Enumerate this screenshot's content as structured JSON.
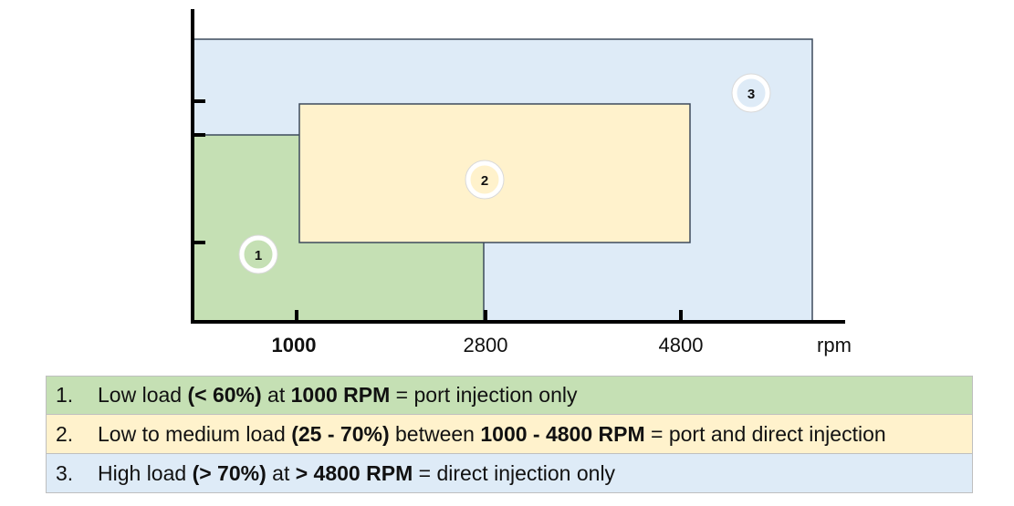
{
  "diagram": {
    "x_axis": {
      "unit_label": "rpm",
      "ticks": [
        {
          "label": "1000",
          "bold": true
        },
        {
          "label": "2800",
          "bold": false
        },
        {
          "label": "4800",
          "bold": false
        }
      ]
    },
    "zones": [
      {
        "id": "1",
        "color": "#c5e0b4"
      },
      {
        "id": "2",
        "color": "#fff2cc"
      },
      {
        "id": "3",
        "color": "#deebf7"
      }
    ]
  },
  "legend": [
    {
      "number": "1.",
      "color": "#c5e0b4",
      "parts": [
        {
          "text": "Low load ",
          "bold": false
        },
        {
          "text": "(< 60%)",
          "bold": true
        },
        {
          "text": " at ",
          "bold": false
        },
        {
          "text": "1000 RPM",
          "bold": true
        },
        {
          "text": " = port injection only",
          "bold": false
        }
      ]
    },
    {
      "number": "2.",
      "color": "#fff2cc",
      "parts": [
        {
          "text": "Low to medium load ",
          "bold": false
        },
        {
          "text": "(25 - 70%)",
          "bold": true
        },
        {
          "text": " between ",
          "bold": false
        },
        {
          "text": "1000 - 4800 RPM",
          "bold": true
        },
        {
          "text": " = port and direct injection",
          "bold": false
        }
      ]
    },
    {
      "number": "3.",
      "color": "#deebf7",
      "parts": [
        {
          "text": "High load ",
          "bold": false
        },
        {
          "text": "(> 70%)",
          "bold": true
        },
        {
          "text": " at ",
          "bold": false
        },
        {
          "text": "> 4800 RPM",
          "bold": true
        },
        {
          "text": " = direct injection only",
          "bold": false
        }
      ]
    }
  ]
}
